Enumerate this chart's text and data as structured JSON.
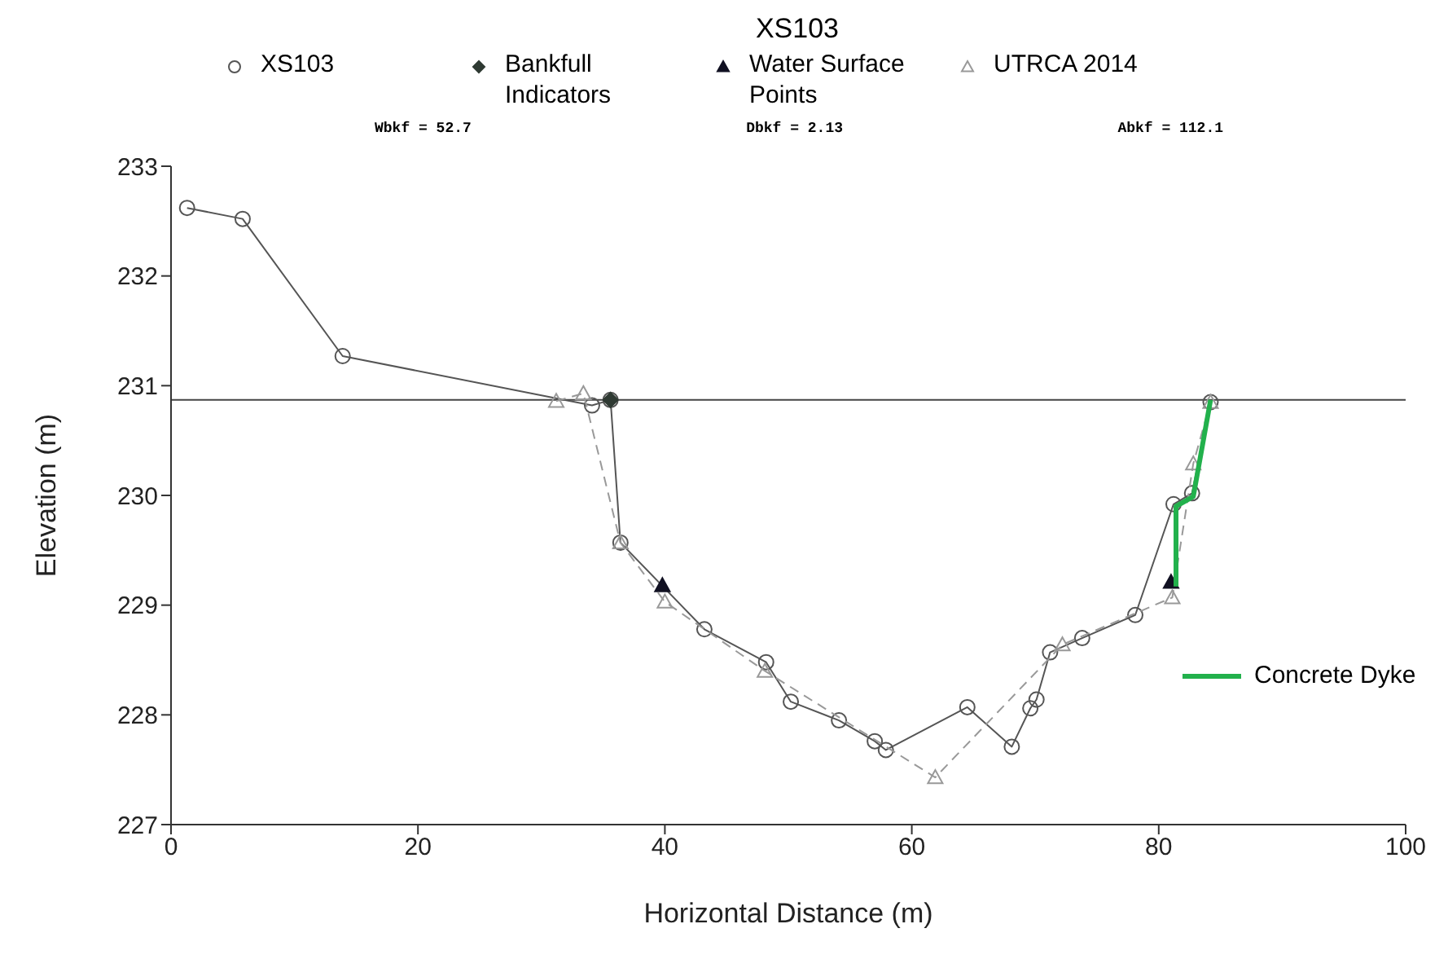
{
  "chart_data": {
    "type": "scatter",
    "title": "XS103",
    "xlabel": "Horizontal Distance (m)",
    "ylabel": "Elevation (m)",
    "xlim": [
      0,
      100
    ],
    "xticks": [
      0,
      20,
      40,
      60,
      80,
      100
    ],
    "ylim": [
      227,
      233
    ],
    "yticks": [
      227,
      228,
      229,
      230,
      231,
      232,
      233
    ],
    "grid": false,
    "legend": "top",
    "annotations": [
      "Wbkf = 52.7",
      "Dbkf = 2.13",
      "Abkf = 112.1"
    ],
    "ref_lines": [
      {
        "axis": "y",
        "value": 230.87,
        "color": "#444444"
      }
    ],
    "series": [
      {
        "name": "XS103",
        "type": "line",
        "marker": "circle",
        "line_style": "solid",
        "color": "#555555",
        "x": [
          1.3,
          5.8,
          13.9,
          34.1,
          35.6,
          36.4,
          43.2,
          48.2,
          50.2,
          54.1,
          57.0,
          57.9,
          64.5,
          68.1,
          69.6,
          70.1,
          71.2,
          73.8,
          78.1,
          81.2,
          82.7,
          84.2
        ],
        "values": [
          232.62,
          232.52,
          231.27,
          230.82,
          230.87,
          229.57,
          228.78,
          228.48,
          228.12,
          227.95,
          227.76,
          227.68,
          228.07,
          227.71,
          228.06,
          228.14,
          228.57,
          228.7,
          228.91,
          229.92,
          230.02,
          230.85
        ]
      },
      {
        "name": "Bankfull Indicators",
        "marker": "diamond",
        "color": "#2f3a33",
        "x": [
          35.6
        ],
        "values": [
          230.87
        ]
      },
      {
        "name": "Water Surface Points",
        "marker": "triangle",
        "color": "#111122",
        "x": [
          39.8,
          81.0
        ],
        "values": [
          229.18,
          229.21
        ]
      },
      {
        "name": "UTRCA 2014",
        "type": "line",
        "marker": "triangle",
        "line_style": "dashed",
        "color": "#999999",
        "x": [
          31.2,
          33.4,
          36.4,
          40.0,
          48.1,
          61.9,
          72.2,
          81.1,
          82.8,
          84.2
        ],
        "values": [
          230.86,
          230.93,
          229.57,
          229.03,
          228.4,
          227.43,
          228.64,
          229.07,
          230.29,
          230.85
        ]
      },
      {
        "name": "Concrete Dyke",
        "type": "line",
        "marker": "none",
        "line_style": "solid",
        "color": "#22b14c",
        "x": [
          81.4,
          81.4,
          82.8,
          84.2
        ],
        "values": [
          229.17,
          229.9,
          229.99,
          230.87
        ]
      }
    ]
  }
}
